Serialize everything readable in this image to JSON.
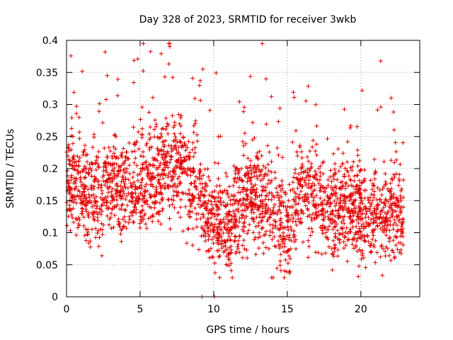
{
  "chart_data": {
    "type": "scatter",
    "title": "Day 328 of 2023, SRMTID for receiver 3wkb",
    "xlabel": "GPS time / hours",
    "ylabel": "SRMTID / TECUs",
    "xlim": [
      0,
      24
    ],
    "ylim": [
      0,
      0.4
    ],
    "x_ticks": [
      0,
      5,
      10,
      15,
      20
    ],
    "x_tick_labels": [
      "0",
      "5",
      "10",
      "15",
      "20"
    ],
    "y_ticks": [
      0,
      0.05,
      0.1,
      0.15,
      0.2,
      0.25,
      0.3,
      0.35,
      0.4
    ],
    "y_tick_labels": [
      "0",
      "0.05",
      "0.1",
      "0.15",
      "0.2",
      "0.25",
      "0.3",
      "0.35",
      "0.4"
    ],
    "grid": true,
    "marker": "+",
    "color": "#e00000",
    "x_range": [
      0,
      22.9
    ],
    "zero_points_x": [
      9.2,
      10.05
    ],
    "baseline_profile": [
      [
        0,
        0.19
      ],
      [
        1,
        0.17
      ],
      [
        2,
        0.15
      ],
      [
        3,
        0.18
      ],
      [
        4,
        0.17
      ],
      [
        5,
        0.18
      ],
      [
        6,
        0.19
      ],
      [
        7,
        0.2
      ],
      [
        8,
        0.2
      ],
      [
        9,
        0.16
      ],
      [
        10,
        0.12
      ],
      [
        11,
        0.1
      ],
      [
        12,
        0.15
      ],
      [
        13,
        0.17
      ],
      [
        14,
        0.14
      ],
      [
        15,
        0.1
      ],
      [
        16,
        0.17
      ],
      [
        17,
        0.15
      ],
      [
        18,
        0.14
      ],
      [
        19,
        0.14
      ],
      [
        20,
        0.13
      ],
      [
        21,
        0.13
      ],
      [
        22,
        0.13
      ],
      [
        23,
        0.12
      ]
    ],
    "approx_point_count": 2600,
    "series_name": "SRMTID"
  }
}
